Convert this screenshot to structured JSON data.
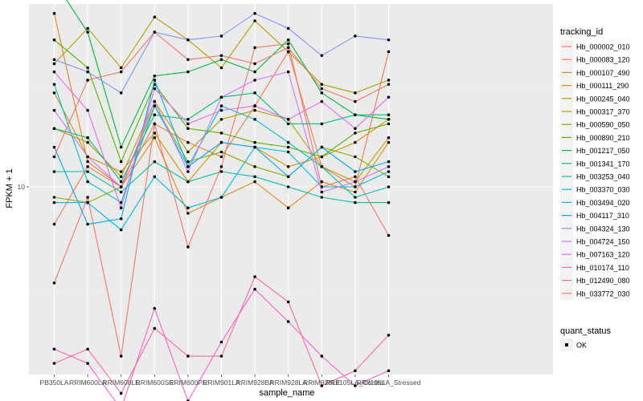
{
  "chart_data": {
    "type": "line",
    "title": "",
    "xlabel": "sample_name",
    "ylabel": "FPKM + 1",
    "y_scale": "log10",
    "y_ticks": [
      {
        "value": 10,
        "label": "10"
      }
    ],
    "grid": true,
    "legend_position": "right",
    "categories": [
      "PB350LA",
      "RRIM600LA",
      "RRIM600LE",
      "RRIM600SE",
      "RRIM600PE",
      "RRIM901LA",
      "RRIM928BA",
      "RRIM928LA",
      "RRIM928LE",
      "RRII105LA_Control",
      "RRII105LA_Stressed"
    ],
    "colors": {
      "panel_bg": "#ebebeb",
      "grid_major": "#ffffff",
      "grid_minor": "#f2f2f2",
      "point": "#000000"
    },
    "series": [
      {
        "name": "Hb_000002_010",
        "color": "#F8766D",
        "values": [
          8.3,
          9.8,
          7.2,
          11.3,
          8.9,
          10.4,
          13.1,
          13.2,
          10.0,
          10.2,
          9.1
        ]
      },
      {
        "name": "Hb_000083_120",
        "color": "#F27D52",
        "values": [
          9.3,
          10.4,
          10.0,
          11.3,
          10.9,
          10.6,
          11.7,
          13.0,
          10.4,
          10.0,
          13.0
        ]
      },
      {
        "name": "Hb_000107_490",
        "color": "#E7861B",
        "values": [
          14.0,
          10.5,
          10.0,
          11.0,
          9.5,
          9.8,
          10.1,
          9.6,
          10.1,
          9.9,
          10.9
        ]
      },
      {
        "name": "Hb_000111_290",
        "color": "#DB8E00",
        "values": [
          12.0,
          10.6,
          10.3,
          11.1,
          10.1,
          10.9,
          10.8,
          10.4,
          10.6,
          10.9,
          11.4
        ]
      },
      {
        "name": "Hb_000245_040",
        "color": "#B79F00",
        "values": [
          11.2,
          10.9,
          10.2,
          11.8,
          10.7,
          11.4,
          11.6,
          11.4,
          10.4,
          10.1,
          11.0
        ]
      },
      {
        "name": "Hb_000317_370",
        "color": "#AEA200",
        "values": [
          12.7,
          13.6,
          12.6,
          13.9,
          13.3,
          12.6,
          13.8,
          13.0,
          12.2,
          12.0,
          12.3
        ]
      },
      {
        "name": "Hb_000590_050",
        "color": "#8BAB00",
        "values": [
          9.8,
          9.7,
          10.0,
          11.7,
          10.5,
          10.7,
          10.4,
          10.2,
          10.8,
          10.6,
          10.2
        ]
      },
      {
        "name": "Hb_000890_210",
        "color": "#53B400",
        "values": [
          13.3,
          12.6,
          10.5,
          12.2,
          11.2,
          11.1,
          10.9,
          10.8,
          10.6,
          11.1,
          11.3
        ]
      },
      {
        "name": "Hb_001217_050",
        "color": "#00BA38",
        "values": [
          14.9,
          13.5,
          10.8,
          12.4,
          12.5,
          12.8,
          12.5,
          13.3,
          12.0,
          11.5,
          11.4
        ]
      },
      {
        "name": "Hb_001341_170",
        "color": "#00BF7D",
        "values": [
          11.2,
          11.0,
          10.1,
          11.5,
          11.4,
          11.9,
          12.0,
          11.3,
          11.3,
          11.5,
          11.5
        ]
      },
      {
        "name": "Hb_003253_040",
        "color": "#00C19A",
        "values": [
          10.3,
          10.3,
          9.9,
          10.5,
          10.1,
          10.3,
          10.2,
          10.0,
          9.8,
          9.7,
          9.7
        ]
      },
      {
        "name": "Hb_003370_030",
        "color": "#00BFC4",
        "values": [
          12.2,
          10.1,
          9.7,
          11.7,
          10.4,
          11.7,
          11.4,
          10.9,
          10.4,
          9.8,
          10.0
        ]
      },
      {
        "name": "Hb_003494_020",
        "color": "#00B8E7",
        "values": [
          9.7,
          9.7,
          9.2,
          10.2,
          9.6,
          9.8,
          10.8,
          10.7,
          10.0,
          10.0,
          10.3
        ]
      },
      {
        "name": "Hb_004117_310",
        "color": "#00A9FF",
        "values": [
          10.8,
          9.3,
          9.4,
          12.3,
          10.4,
          10.9,
          10.8,
          10.2,
          10.8,
          10.3,
          10.5
        ]
      },
      {
        "name": "Hb_004324_130",
        "color": "#8494FF",
        "values": [
          12.8,
          12.5,
          12.0,
          13.5,
          13.3,
          13.4,
          14.0,
          13.6,
          12.9,
          13.4,
          13.3
        ]
      },
      {
        "name": "Hb_004724_150",
        "color": "#C77CFF",
        "values": [
          11.6,
          10.6,
          10.0,
          11.8,
          10.3,
          11.9,
          12.3,
          12.5,
          9.9,
          10.1,
          10.4
        ]
      },
      {
        "name": "Hb_007163_120",
        "color": "#ED68ED",
        "values": [
          12.5,
          11.6,
          9.6,
          12.1,
          11.3,
          11.6,
          11.7,
          11.4,
          11.8,
          11.2,
          11.9
        ]
      },
      {
        "name": "Hb_010174_110",
        "color": "#FF61C3",
        "values": [
          7.3,
          7.1,
          6.5,
          7.9,
          6.6,
          7.4,
          8.2,
          7.7,
          7.2,
          6.8,
          7.0
        ]
      },
      {
        "name": "Hb_012490_080",
        "color": "#FF68A1",
        "values": [
          7.1,
          7.3,
          6.7,
          7.6,
          7.2,
          7.2,
          8.4,
          8.0,
          6.8,
          7.0,
          7.5
        ]
      },
      {
        "name": "Hb_033772_030",
        "color": "#F8766D",
        "values": [
          10.6,
          12.3,
          12.5,
          13.5,
          12.8,
          12.9,
          12.7,
          13.1,
          12.1,
          11.8,
          12.2
        ]
      }
    ],
    "legend": {
      "tracking_id_title": "tracking_id",
      "quant_status_title": "quant_status",
      "quant_status_items": [
        "OK"
      ]
    }
  }
}
